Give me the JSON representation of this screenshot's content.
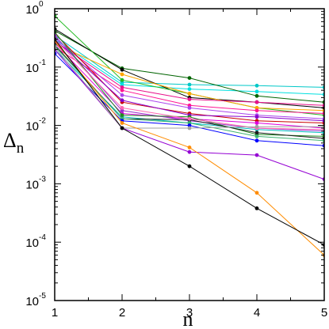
{
  "chart_data": {
    "type": "line",
    "xlabel": "n",
    "ylabel": "Δ",
    "ylabel_subscript": "n",
    "y_scale": "log",
    "xlim": [
      1,
      5
    ],
    "ylim": [
      1e-05,
      1
    ],
    "x_ticks": [
      1,
      2,
      3,
      4,
      5
    ],
    "x_tick_labels": [
      "1",
      "2",
      "3",
      "4",
      "5"
    ],
    "y_ticks": [
      1e-05,
      0.0001,
      0.001,
      0.01,
      0.1,
      1
    ],
    "y_tick_labels": [
      {
        "base": "10",
        "exp": "-5"
      },
      {
        "base": "10",
        "exp": "-4"
      },
      {
        "base": "10",
        "exp": "-3"
      },
      {
        "base": "10",
        "exp": "-2"
      },
      {
        "base": "10",
        "exp": "-1"
      },
      {
        "base": "10",
        "exp": "0"
      }
    ],
    "grid": false,
    "x": [
      1,
      2,
      3,
      4,
      5
    ],
    "series": [
      {
        "color": "#00c8c8",
        "values": [
          0.35,
          0.055,
          0.05,
          0.048,
          0.045
        ]
      },
      {
        "color": "#00e0e0",
        "values": [
          0.3,
          0.05,
          0.042,
          0.038,
          0.034
        ]
      },
      {
        "color": "#006400",
        "values": [
          0.42,
          0.095,
          0.065,
          0.032,
          0.025
        ]
      },
      {
        "color": "#000000",
        "values": [
          0.45,
          0.09,
          0.03,
          0.025,
          0.02
        ]
      },
      {
        "color": "#22bb22",
        "values": [
          0.75,
          0.06,
          0.035,
          0.02,
          0.015
        ]
      },
      {
        "color": "#ffa500",
        "values": [
          0.25,
          0.075,
          0.035,
          0.02,
          0.018
        ]
      },
      {
        "color": "#e8128c",
        "values": [
          0.28,
          0.045,
          0.028,
          0.025,
          0.022
        ]
      },
      {
        "color": "#ff1493",
        "values": [
          0.22,
          0.04,
          0.022,
          0.018,
          0.016
        ]
      },
      {
        "color": "#aa44ee",
        "values": [
          0.32,
          0.033,
          0.02,
          0.015,
          0.013
        ]
      },
      {
        "color": "#cc0000",
        "values": [
          0.38,
          0.025,
          0.016,
          0.012,
          0.011
        ]
      },
      {
        "color": "#8800cc",
        "values": [
          0.3,
          0.027,
          0.015,
          0.014,
          0.012
        ]
      },
      {
        "color": "#dd00dd",
        "values": [
          0.26,
          0.016,
          0.013,
          0.011,
          0.009
        ]
      },
      {
        "color": "#9932cc",
        "values": [
          0.35,
          0.018,
          0.012,
          0.009,
          0.008
        ]
      },
      {
        "color": "#00bfbf",
        "values": [
          0.2,
          0.014,
          0.011,
          0.0085,
          0.0075
        ]
      },
      {
        "color": "#228b22",
        "values": [
          0.4,
          0.015,
          0.014,
          0.007,
          0.0065
        ]
      },
      {
        "color": "#1e1e1e",
        "values": [
          0.24,
          0.013,
          0.0125,
          0.0075,
          0.006
        ]
      },
      {
        "color": "#3cb371",
        "values": [
          0.23,
          0.013,
          0.011,
          0.0065,
          0.0055
        ]
      },
      {
        "color": "#0000ff",
        "values": [
          0.17,
          0.012,
          0.01,
          0.0055,
          0.0045
        ]
      },
      {
        "color": "#ff69b4",
        "values": [
          0.3,
          0.02,
          0.013,
          0.009,
          0.0085
        ]
      },
      {
        "color": "#9400d3",
        "values": [
          0.2,
          0.009,
          0.0035,
          0.0031,
          0.0012
        ]
      },
      {
        "color": "#a0a0a0",
        "values": [
          0.22,
          0.009,
          0.009,
          0.0095,
          0.0095
        ]
      },
      {
        "color": "#ff8c00",
        "values": [
          0.28,
          0.011,
          0.0042,
          0.0007,
          6e-05
        ]
      },
      {
        "color": "#000000",
        "values": [
          0.3,
          0.009,
          0.002,
          0.00038,
          9e-05
        ]
      }
    ]
  }
}
